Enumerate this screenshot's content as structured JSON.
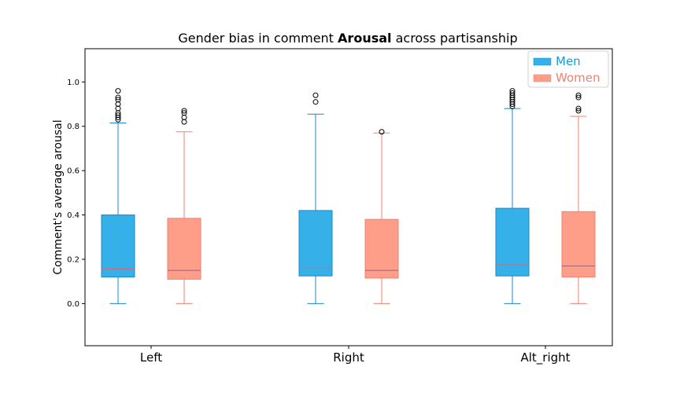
{
  "chart_data": {
    "type": "boxplot",
    "title": {
      "prefix": "Gender bias in comment ",
      "emphasis": "Arousal",
      "suffix": " across partisanship"
    },
    "xlabel": "",
    "ylabel": "Comment's average arousal",
    "ylim": [
      -0.19,
      1.15
    ],
    "yticks": [
      0.0,
      0.2,
      0.4,
      0.6,
      0.8,
      1.0
    ],
    "ytick_labels": [
      "0.0",
      "0.2",
      "0.4",
      "0.6",
      "0.8",
      "1.0"
    ],
    "categories": [
      "Left",
      "Right",
      "Alt_right"
    ],
    "legend_position": "top-right",
    "series": [
      {
        "name": "Men",
        "fill": "#35b0e8",
        "edge": "#1a88c8",
        "median_color": "#e0647a",
        "boxes": [
          {
            "whislo": 0.0,
            "q1": 0.12,
            "median": 0.155,
            "q3": 0.4,
            "whishi": 0.815,
            "fliers": [
              0.83,
              0.84,
              0.85,
              0.86,
              0.88,
              0.9,
              0.92,
              0.93,
              0.96
            ]
          },
          {
            "whislo": 0.0,
            "q1": 0.125,
            "median": 0.16,
            "q3": 0.42,
            "whishi": 0.855,
            "fliers": [
              0.91,
              0.94
            ]
          },
          {
            "whislo": 0.0,
            "q1": 0.125,
            "median": 0.175,
            "q3": 0.43,
            "whishi": 0.88,
            "fliers": [
              0.89,
              0.9,
              0.91,
              0.92,
              0.93,
              0.94,
              0.95,
              0.96
            ]
          }
        ]
      },
      {
        "name": "Women",
        "fill": "#ff9e88",
        "edge": "#f08070",
        "median_color": "#a0607a",
        "boxes": [
          {
            "whislo": 0.0,
            "q1": 0.11,
            "median": 0.15,
            "q3": 0.385,
            "whishi": 0.775,
            "fliers": [
              0.82,
              0.84,
              0.86,
              0.87
            ]
          },
          {
            "whislo": 0.0,
            "q1": 0.115,
            "median": 0.15,
            "q3": 0.38,
            "whishi": 0.77,
            "fliers": [
              0.775
            ]
          },
          {
            "whislo": 0.0,
            "q1": 0.12,
            "median": 0.17,
            "q3": 0.415,
            "whishi": 0.845,
            "fliers": [
              0.87,
              0.88,
              0.93,
              0.94
            ]
          }
        ]
      }
    ]
  },
  "colors": {
    "men_legend_text": "#1a9ad8",
    "women_legend_text": "#f08070"
  }
}
